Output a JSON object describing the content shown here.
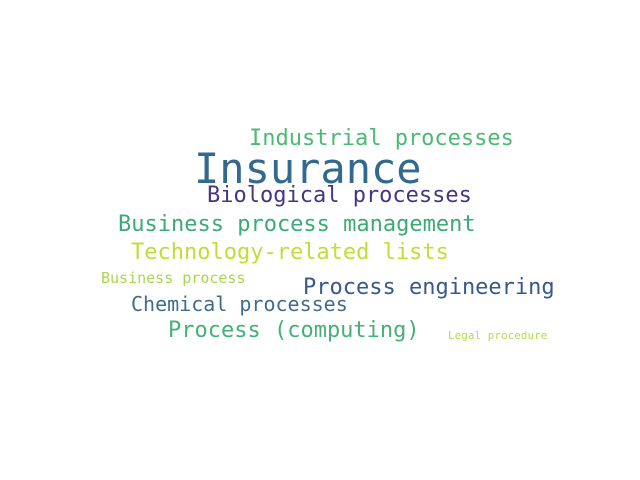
{
  "words": [
    {
      "key": "insurance",
      "text": "Insurance",
      "color": "#32698e"
    },
    {
      "key": "industrial",
      "text": "Industrial processes",
      "color": "#4cba73"
    },
    {
      "key": "biological",
      "text": "Biological processes",
      "color": "#463682"
    },
    {
      "key": "bpm",
      "text": "Business process management",
      "color": "#3aaa78"
    },
    {
      "key": "tech",
      "text": "Technology-related lists",
      "color": "#c3dc3a"
    },
    {
      "key": "bp",
      "text": "Business process",
      "color": "#a8d84c"
    },
    {
      "key": "engineering",
      "text": "Process engineering",
      "color": "#39588c"
    },
    {
      "key": "chemical",
      "text": "Chemical processes",
      "color": "#3f6c8e"
    },
    {
      "key": "computing",
      "text": "Process (computing)",
      "color": "#45b07a"
    },
    {
      "key": "legal",
      "text": "Legal procedure",
      "color": "#b2dc50"
    }
  ]
}
